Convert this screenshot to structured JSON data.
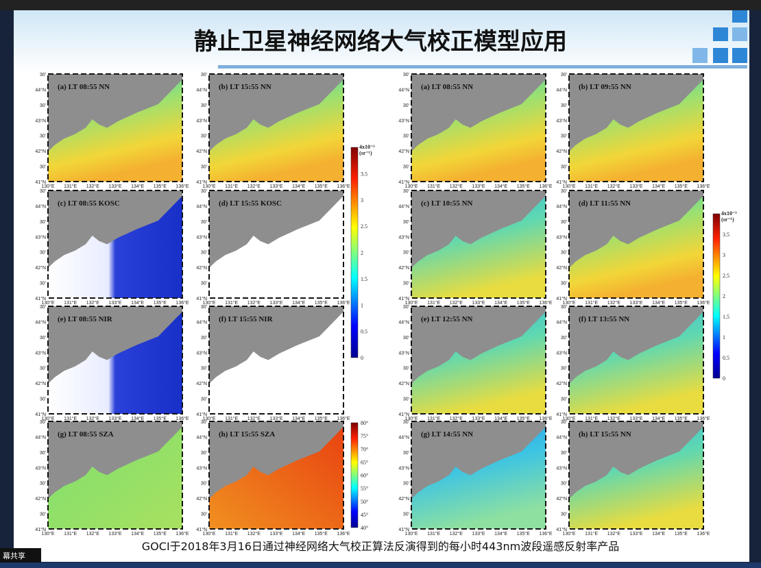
{
  "header": {
    "title": "静止卫星神经网络大气校正模型应用"
  },
  "screen_share_label": "幕共享",
  "axes": {
    "lat_labels": [
      "30'",
      "44°N",
      "30'",
      "43°N",
      "30'",
      "42°N",
      "30'",
      "41°N"
    ],
    "lon_labels": [
      "130°E",
      "131°E",
      "132°E",
      "133°E",
      "134°E",
      "135°E",
      "136°E"
    ]
  },
  "left_panels": [
    "(a) LT 08:55 NN",
    "(b) LT 15:55 NN",
    "(c) LT 08:55 KOSC",
    "(d) LT 15:55 KOSC",
    "(e) LT 08:55 NIR",
    "(f) LT 15:55 NIR",
    "(g) LT 08:55 SZA",
    "(h) LT 15:55 SZA"
  ],
  "right_panels": [
    "(a) LT 08:55 NN",
    "(b) LT 09:55 NN",
    "(c) LT 10:55 NN",
    "(d) LT 11:55 NN",
    "(e) LT 12:55 NN",
    "(f) LT 13:55 NN",
    "(g) LT 14:55 NN",
    "(h) LT 15:55 NN"
  ],
  "colorbars": {
    "rrs_left": {
      "top": "4x10⁻³",
      "unit": "(sr⁻¹)",
      "ticks": [
        "3.5",
        "3",
        "2.5",
        "2",
        "1.5",
        "1",
        "0.5",
        "0"
      ]
    },
    "sza": {
      "ticks": [
        "80°",
        "75°",
        "70°",
        "65°",
        "60°",
        "55°",
        "50°",
        "45°",
        "40°"
      ]
    },
    "rrs_right": {
      "top": "4x10⁻³",
      "unit": "(sr⁻¹)",
      "ticks": [
        "3.5",
        "3",
        "2.5",
        "2",
        "1.5",
        "1",
        "0.5",
        "0"
      ]
    }
  },
  "caption": "GOCI于2018年3月16日通过神经网络大气校正算法反演得到的每小时443nm波段遥感反射率产品"
}
